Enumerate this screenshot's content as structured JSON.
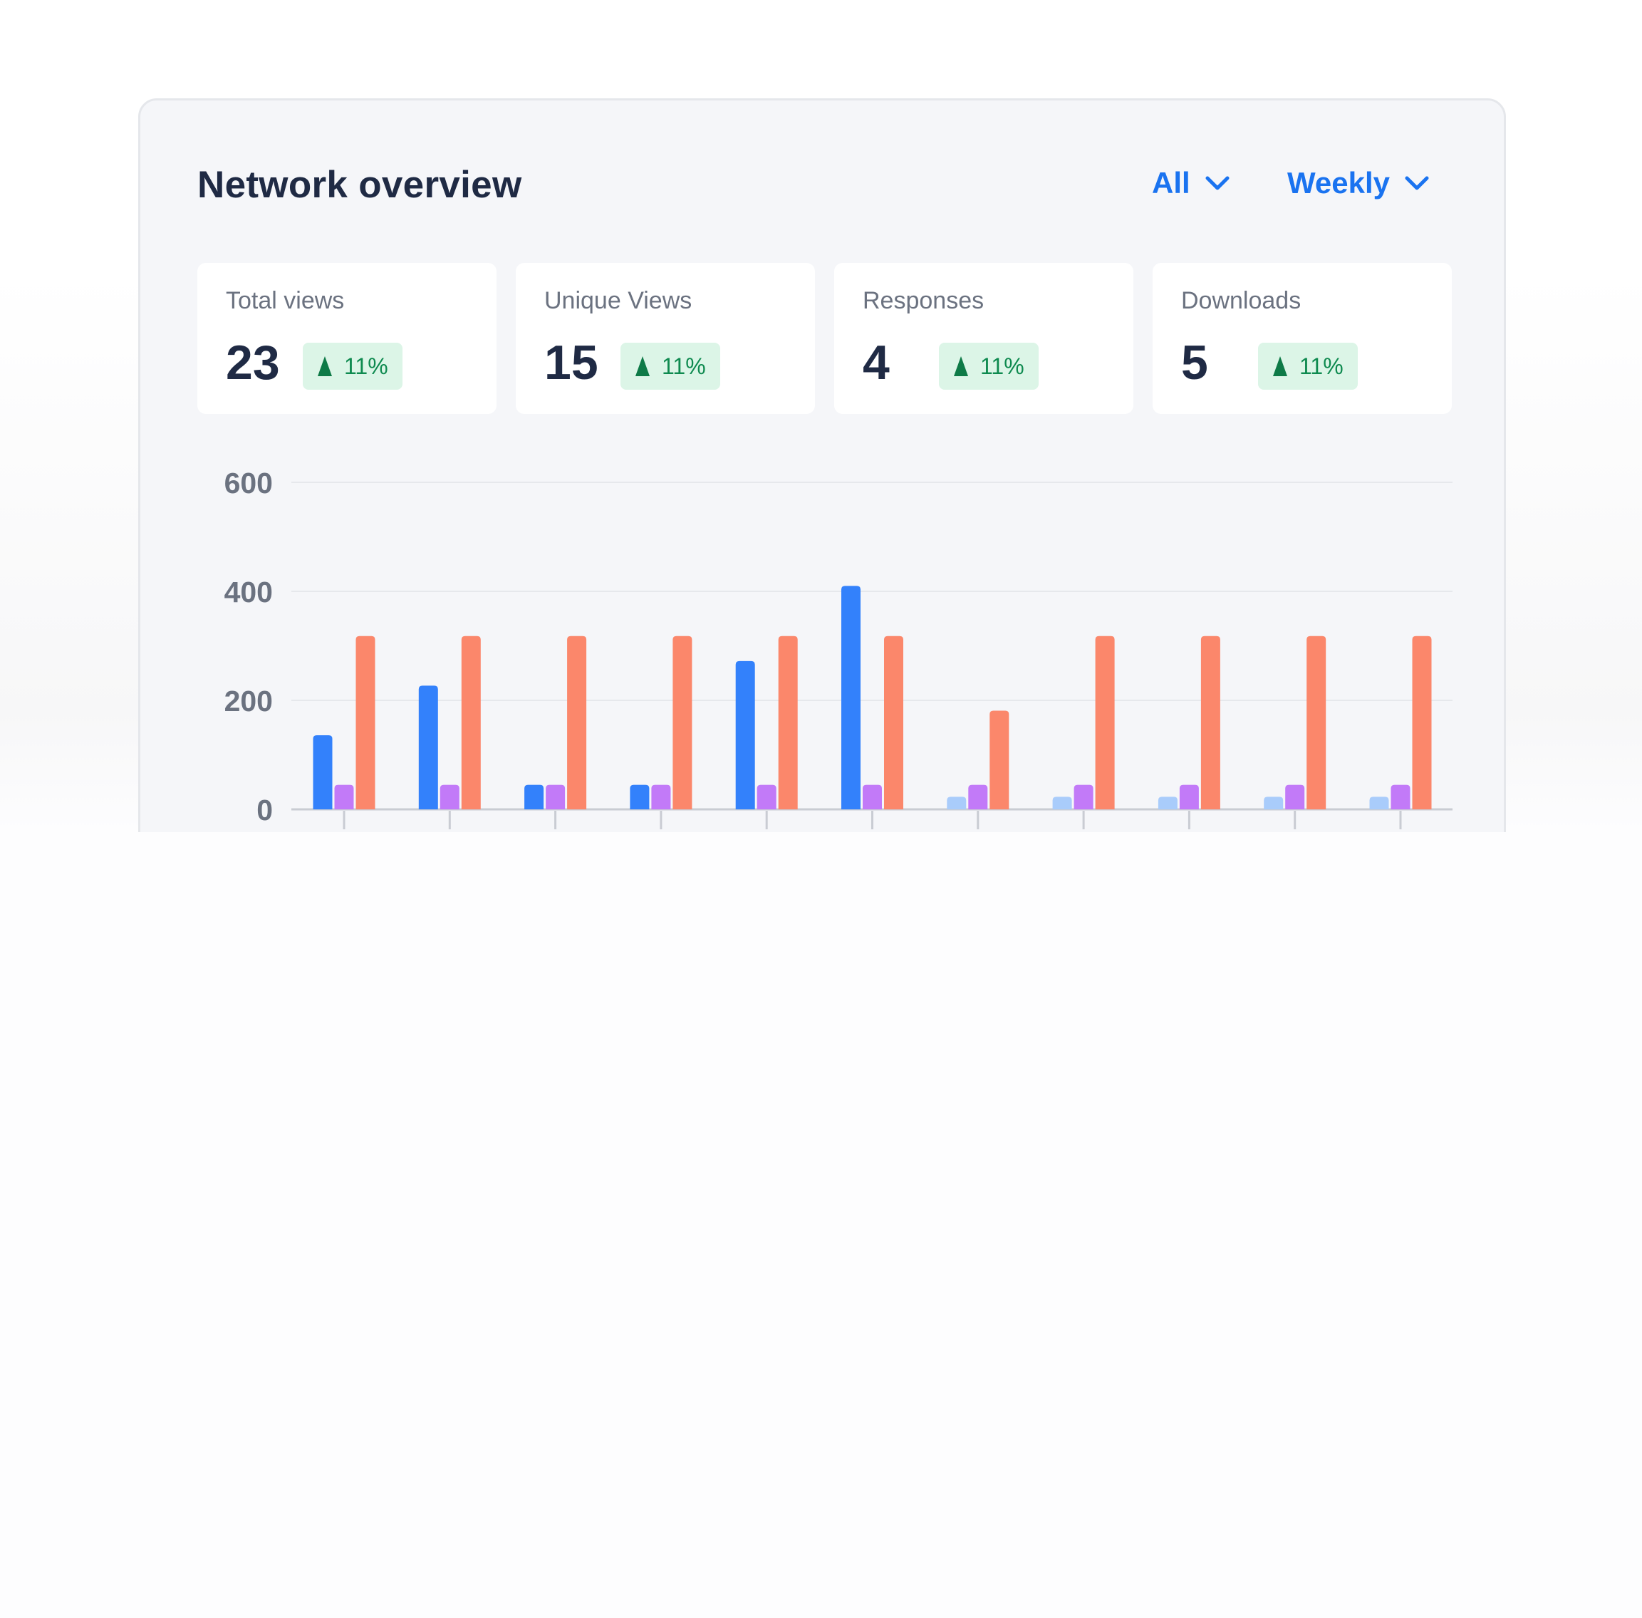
{
  "header": {
    "title": "Network overview",
    "filters": [
      {
        "label": "All",
        "icon": "chevron-down-icon"
      },
      {
        "label": "Weekly",
        "icon": "chevron-down-icon"
      }
    ],
    "accent_color": "#1a73f0"
  },
  "stats": [
    {
      "label": "Total views",
      "value": "23",
      "change": "11%",
      "trend_icon": "triangle-up-icon"
    },
    {
      "label": "Unique Views",
      "value": "15",
      "change": "11%",
      "trend_icon": "triangle-up-icon"
    },
    {
      "label": "Responses",
      "value": "4",
      "change": "11%",
      "trend_icon": "triangle-up-icon"
    },
    {
      "label": "Downloads",
      "value": "5",
      "change": "11%",
      "trend_icon": "triangle-up-icon"
    }
  ],
  "chart_data": {
    "type": "bar",
    "y_ticks": [
      "600",
      "400",
      "200",
      "0"
    ],
    "ylim": [
      0,
      600
    ],
    "grid": true,
    "categories": [
      "",
      "",
      "",
      "",
      "",
      "",
      "",
      "",
      "",
      "",
      ""
    ],
    "series": [
      {
        "color": "#3381fb",
        "values": [
          136,
          227,
          45,
          45,
          272,
          410,
          23,
          23,
          23,
          23,
          23
        ]
      },
      {
        "color": "#c27af8",
        "values": [
          45,
          45,
          45,
          45,
          45,
          45,
          45,
          45,
          45,
          45,
          45
        ]
      },
      {
        "color": "#fb876b",
        "values": [
          318,
          318,
          318,
          318,
          318,
          318,
          181,
          318,
          318,
          318,
          318
        ]
      }
    ],
    "bar_color_overrides": {
      "series_0_low_color": "#a9ccfb"
    }
  }
}
